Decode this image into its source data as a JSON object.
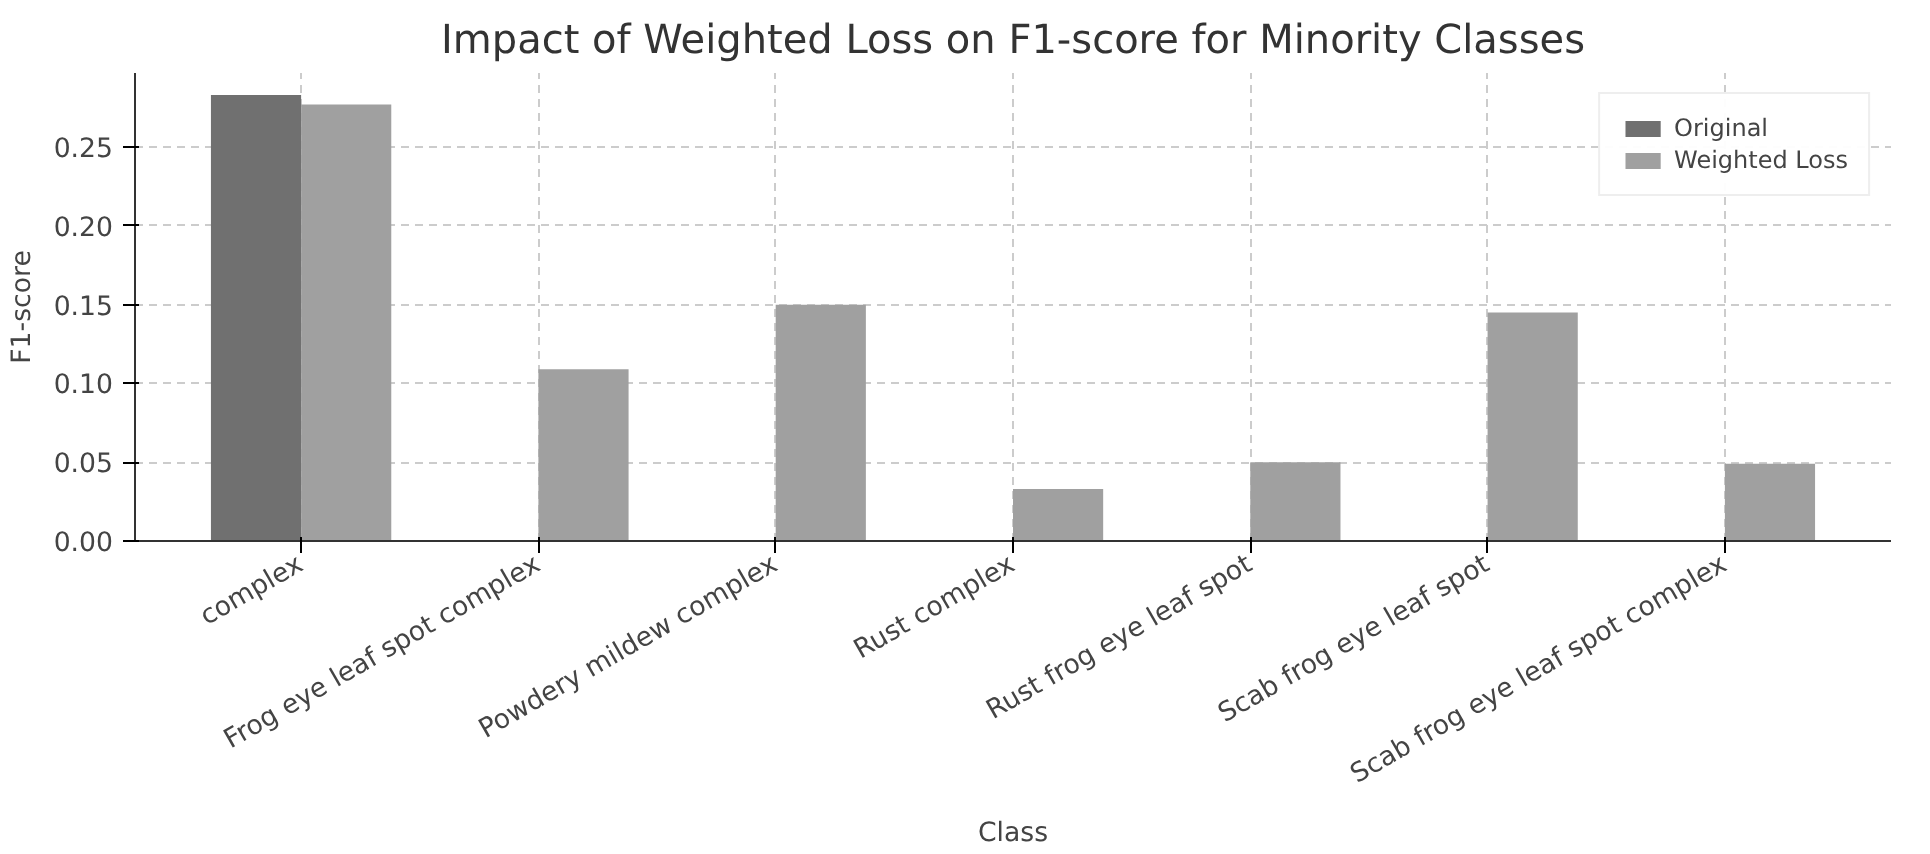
{
  "chart_data": {
    "type": "bar",
    "title": "Impact of Weighted Loss on F1-score for Minority Classes",
    "xlabel": "Class",
    "ylabel": "F1-score",
    "categories": [
      "complex",
      "Frog eye leaf spot complex",
      "Powdery mildew complex",
      "Rust complex",
      "Rust frog eye leaf spot",
      "Scab frog eye leaf spot",
      "Scab frog eye leaf spot complex"
    ],
    "series": [
      {
        "name": "Original",
        "color": "#707070",
        "values": [
          0.283,
          0,
          0,
          0,
          0,
          0,
          0
        ]
      },
      {
        "name": "Weighted Loss",
        "color": "#a0a0a0",
        "values": [
          0.277,
          0.109,
          0.15,
          0.033,
          0.05,
          0.145,
          0.049
        ]
      }
    ],
    "ylim": [
      0,
      0.297
    ],
    "yticks": [
      {
        "value": 0,
        "label": "0.00"
      },
      {
        "value": 0.05,
        "label": "0.05"
      },
      {
        "value": 0.1,
        "label": "0.10"
      },
      {
        "value": 0.15,
        "label": "0.15"
      },
      {
        "value": 0.2,
        "label": "0.20"
      },
      {
        "value": 0.25,
        "label": "0.25"
      }
    ],
    "grid": true,
    "legend": "top right"
  }
}
